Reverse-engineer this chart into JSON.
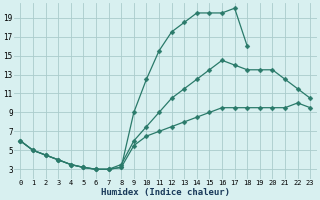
{
  "xlabel": "Humidex (Indice chaleur)",
  "bg_color": "#d8f0f0",
  "grid_color": "#aacccc",
  "line_color": "#2a7a6a",
  "xlim": [
    -0.5,
    23.5
  ],
  "ylim": [
    2.0,
    20.5
  ],
  "xticks": [
    0,
    1,
    2,
    3,
    4,
    5,
    6,
    7,
    8,
    9,
    10,
    11,
    12,
    13,
    14,
    15,
    16,
    17,
    18,
    19,
    20,
    21,
    22,
    23
  ],
  "yticks": [
    3,
    5,
    7,
    9,
    11,
    13,
    15,
    17,
    19
  ],
  "line_upper_x": [
    0,
    1,
    2,
    3,
    4,
    5,
    6,
    7,
    8,
    9,
    10,
    11,
    12,
    13,
    14,
    15,
    16,
    17,
    18
  ],
  "line_upper_y": [
    6,
    5,
    4.5,
    4,
    3.5,
    3.2,
    3.0,
    3.0,
    3.2,
    9.0,
    12.5,
    15.5,
    17.5,
    18.5,
    19.5,
    19.5,
    19.5,
    20.0,
    16.0
  ],
  "line_mid_x": [
    0,
    1,
    2,
    3,
    4,
    5,
    6,
    7,
    8,
    9,
    10,
    11,
    12,
    13,
    14,
    15,
    16,
    17,
    18,
    19,
    20,
    21,
    22,
    23
  ],
  "line_mid_y": [
    6,
    5,
    4.5,
    4,
    3.5,
    3.2,
    3.0,
    3.0,
    3.5,
    6.0,
    7.5,
    9.0,
    10.5,
    11.5,
    12.5,
    13.5,
    14.5,
    14.0,
    13.5,
    13.5,
    13.5,
    12.5,
    11.5,
    10.5
  ],
  "line_lower_x": [
    0,
    1,
    2,
    3,
    4,
    5,
    6,
    7,
    8,
    9,
    10,
    11,
    12,
    13,
    14,
    15,
    16,
    17,
    18,
    19,
    20,
    21,
    22,
    23
  ],
  "line_lower_y": [
    6,
    5,
    4.5,
    4,
    3.5,
    3.2,
    3.0,
    3.0,
    3.2,
    5.5,
    6.5,
    7.0,
    7.5,
    8.0,
    8.5,
    9.0,
    9.5,
    9.5,
    9.5,
    9.5,
    9.5,
    9.5,
    10.0,
    9.5
  ],
  "marker_size": 2.5,
  "line_width": 0.9
}
